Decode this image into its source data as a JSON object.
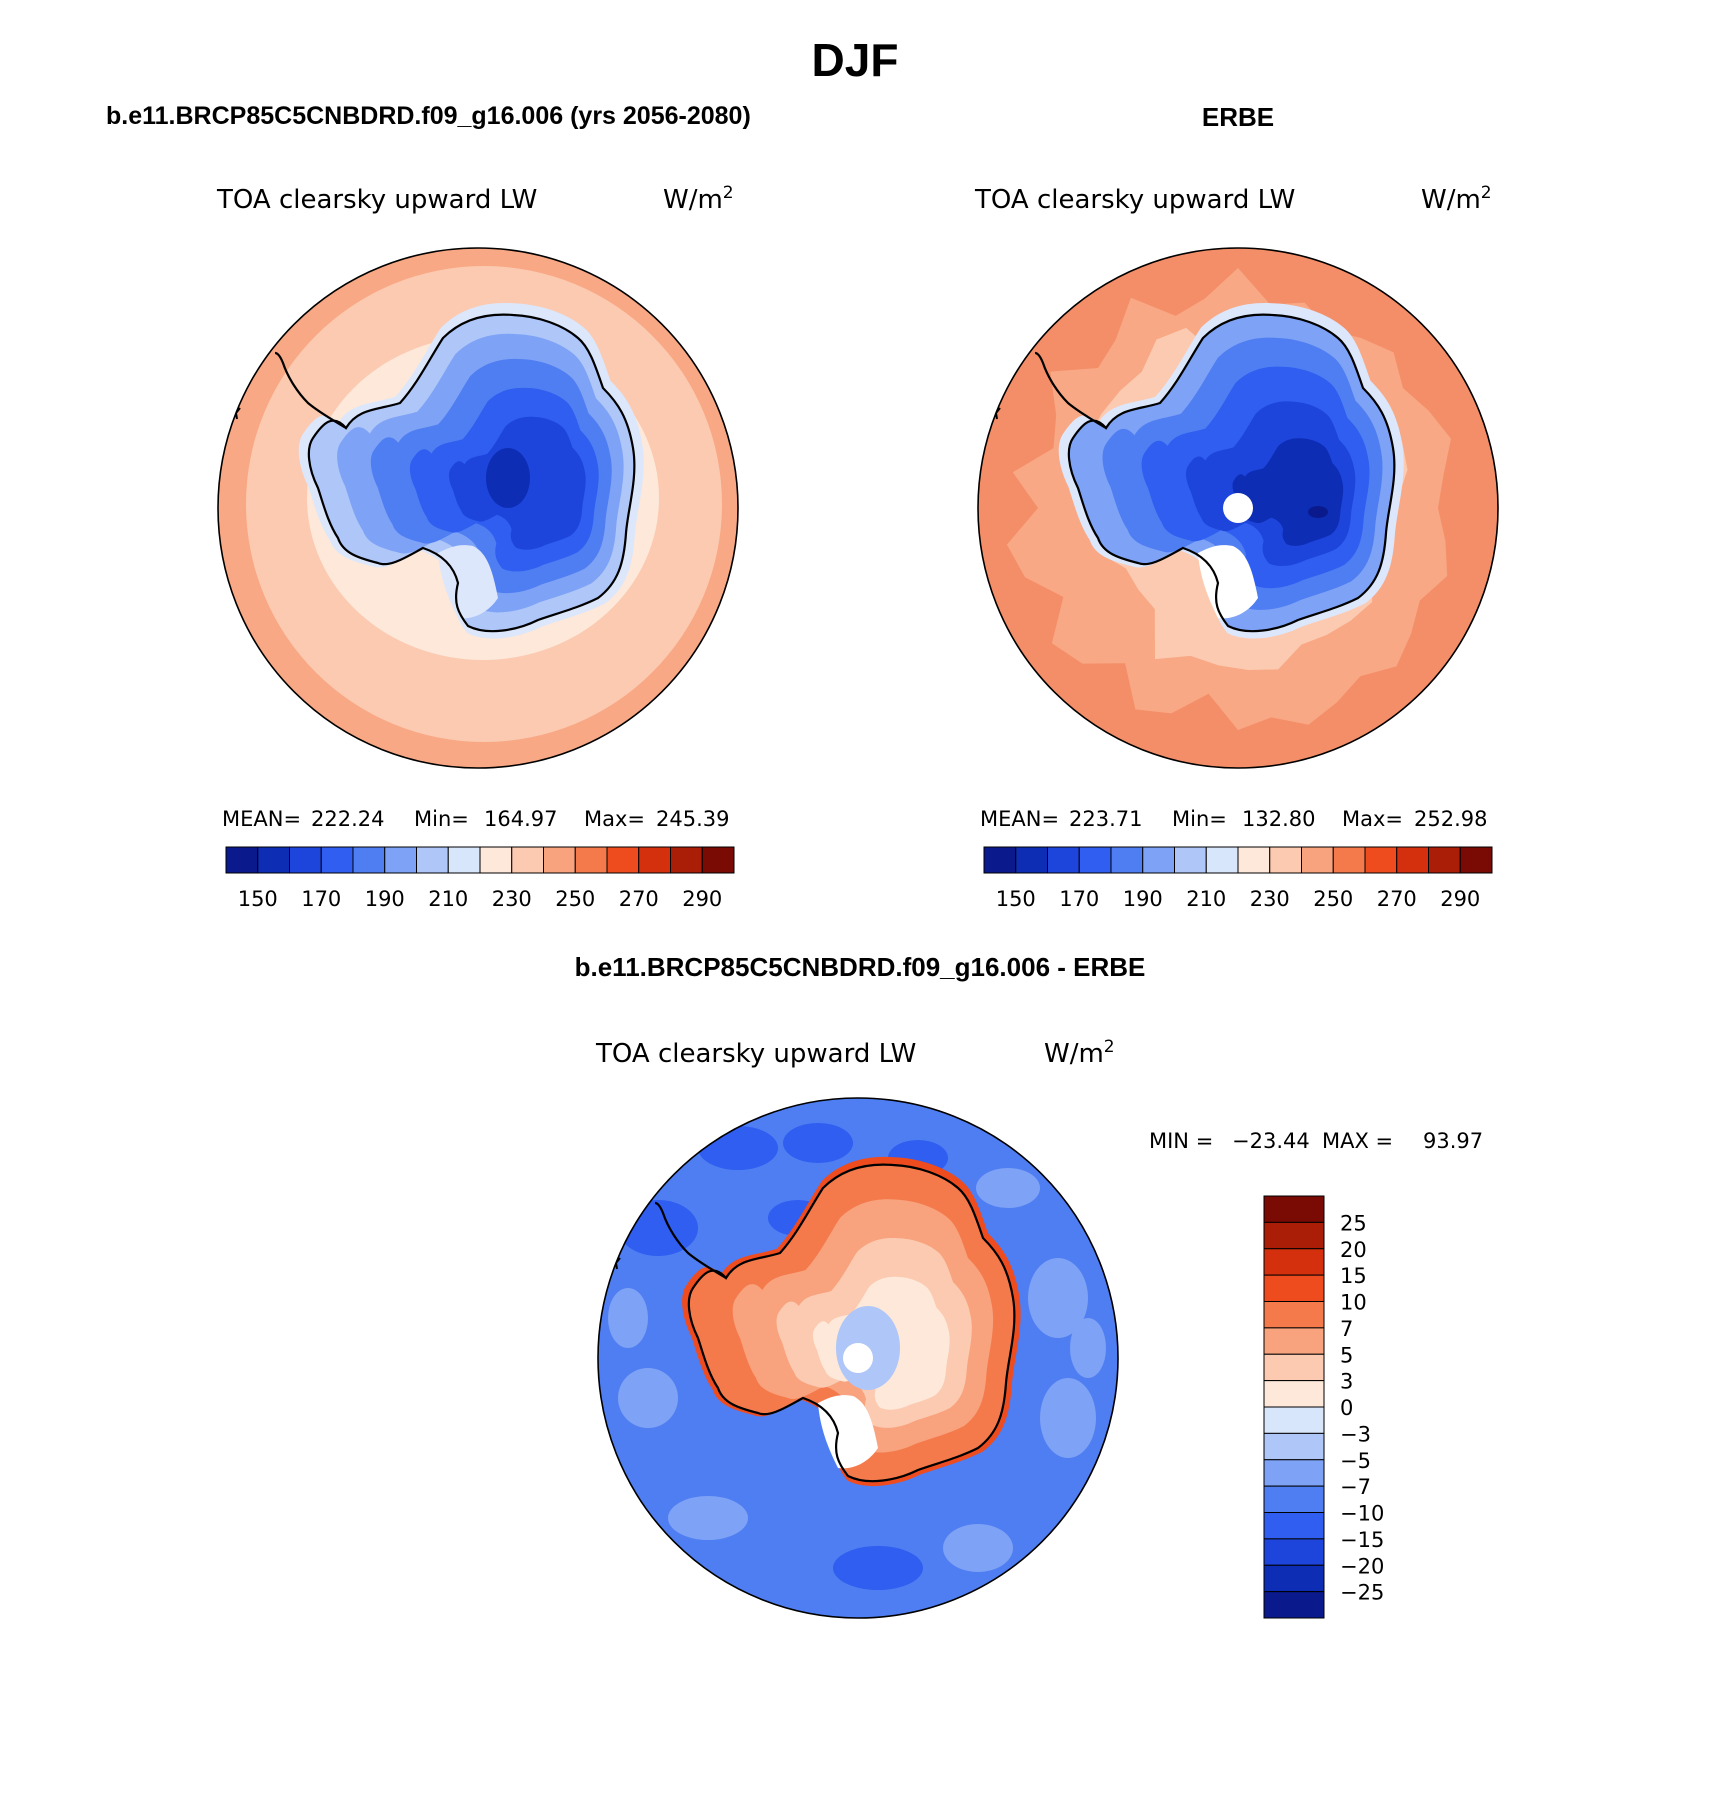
{
  "page_title": "DJF",
  "chart_data": [
    {
      "type": "heatmap",
      "projection": "south-polar-stereographic",
      "header": "b.e11.BRCP85C5CNBDRD.f09_g16.006 (yrs 2056-2080)",
      "title": "TOA clearsky upward LW",
      "units_base": "W/m",
      "units_exp": "2",
      "stats": {
        "mean_label": "MEAN=",
        "mean": "222.24",
        "min_label": "Min=",
        "min": "164.97",
        "max_label": "Max=",
        "max": "245.39"
      },
      "colorbar_ticks": [
        "150",
        "170",
        "190",
        "210",
        "230",
        "250",
        "270",
        "290"
      ],
      "colorbar_colors": [
        "#0a1a8c",
        "#0d2db4",
        "#1d45dc",
        "#2f5ef0",
        "#4f7ef2",
        "#7ea2f5",
        "#aec6f8",
        "#d8e6fb",
        "#fde8da",
        "#fbcab1",
        "#f8a37e",
        "#f47a4c",
        "#ee4b1f",
        "#d5300e",
        "#aa1d07",
        "#7a0a04"
      ],
      "ring_colors": {
        "outer": "#f8a884",
        "mid": "#fbcab1",
        "inner": "#fde8da",
        "edge": "#dce7fb",
        "shelf": "#aec6f8",
        "ice": "#7ea2f5",
        "high1": "#4f7ef2",
        "high2": "#2f5ef0",
        "core": "#1d45dc",
        "dome": "#0d2db4"
      }
    },
    {
      "type": "heatmap",
      "projection": "south-polar-stereographic",
      "header": "ERBE",
      "title": "TOA clearsky upward LW",
      "units_base": "W/m",
      "units_exp": "2",
      "stats": {
        "mean_label": "MEAN=",
        "mean": "223.71",
        "min_label": "Min=",
        "min": "132.80",
        "max_label": "Max=",
        "max": "252.98"
      },
      "colorbar_ticks": [
        "150",
        "170",
        "190",
        "210",
        "230",
        "250",
        "270",
        "290"
      ],
      "colorbar_colors": [
        "#0a1a8c",
        "#0d2db4",
        "#1d45dc",
        "#2f5ef0",
        "#4f7ef2",
        "#7ea2f5",
        "#aec6f8",
        "#d8e6fb",
        "#fde8da",
        "#fbcab1",
        "#f8a37e",
        "#f47a4c",
        "#ee4b1f",
        "#d5300e",
        "#aa1d07",
        "#7a0a04"
      ],
      "ring_colors": {
        "outer": "#f48e68",
        "mid": "#f8a884",
        "inner": "#fbcab1",
        "edge": "#dce7fb",
        "shelf": "#7ea2f5",
        "ice": "#4f7ef2",
        "high1": "#2f5ef0",
        "high2": "#1d45dc",
        "core": "#0d2db4",
        "dome": "#0a1a8c"
      }
    },
    {
      "type": "heatmap",
      "projection": "south-polar-stereographic",
      "header": "b.e11.BRCP85C5CNBDRD.f09_g16.006 - ERBE",
      "title": "TOA clearsky upward LW",
      "units_base": "W/m",
      "units_exp": "2",
      "stats": {
        "min_label": "MIN =",
        "min": "−23.44",
        "max_label": "MAX =",
        "max": "93.97"
      },
      "colorbar_ticks": [
        "25",
        "20",
        "15",
        "10",
        "7",
        "5",
        "3",
        "0",
        "−3",
        "−5",
        "−7",
        "−10",
        "−15",
        "−20",
        "−25"
      ],
      "colorbar_colors": [
        "#7a0a04",
        "#aa1d07",
        "#d5300e",
        "#ee4b1f",
        "#f47a4c",
        "#f8a37e",
        "#fbcab1",
        "#fde8da",
        "#d8e6fb",
        "#aec6f8",
        "#7ea2f5",
        "#4f7ef2",
        "#2f5ef0",
        "#1d45dc",
        "#0d2db4",
        "#0a1a8c"
      ],
      "ring_colors": {
        "ocean1": "#4f7ef2",
        "ocean2": "#7ea2f5",
        "ocean3": "#2f5ef0",
        "land1": "#f47a4c",
        "land2": "#f8a37e",
        "land3": "#fbcab1",
        "land4": "#fde8da",
        "coast": "#ee4b1f",
        "center": "#aec6f8"
      }
    }
  ]
}
